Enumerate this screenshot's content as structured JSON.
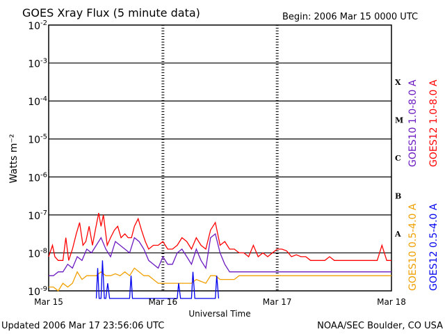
{
  "page": {
    "title": "GOES Xray Flux (5 minute data)",
    "begin": "Begin:  2006 Mar 15 0000 UTC",
    "updated": "Updated 2006 Mar 17 23:56:06 UTC",
    "credit": "NOAA/SEC Boulder, CO USA"
  },
  "chart_data": {
    "type": "line",
    "title": "GOES Xray Flux (5 minute data)",
    "xlabel": "Universal Time",
    "ylabel": "Watts m⁻²",
    "yscale": "log",
    "ylim": [
      1e-09,
      0.01
    ],
    "xlim": [
      0,
      72
    ],
    "x_unit": "hours since 2006 Mar 15 0000 UTC",
    "grid": "horizontal decade lines; dotted day separators",
    "x_ticks": [
      {
        "x": 0,
        "label": "Mar 15"
      },
      {
        "x": 24,
        "label": "Mar 16"
      },
      {
        "x": 48,
        "label": "Mar 17"
      },
      {
        "x": 72,
        "label": "Mar 18"
      }
    ],
    "y_ticks": [
      {
        "exp": -2,
        "base": "10",
        "sup": "-2"
      },
      {
        "exp": -3,
        "base": "10",
        "sup": "-3"
      },
      {
        "exp": -4,
        "base": "10",
        "sup": "-4"
      },
      {
        "exp": -5,
        "base": "10",
        "sup": "-5"
      },
      {
        "exp": -6,
        "base": "10",
        "sup": "-6"
      },
      {
        "exp": -7,
        "base": "10",
        "sup": "-7"
      },
      {
        "exp": -8,
        "base": "10",
        "sup": "-8"
      },
      {
        "exp": -9,
        "base": "10",
        "sup": "-9"
      }
    ],
    "flare_classes": [
      {
        "label": "X",
        "exp": -3.5
      },
      {
        "label": "M",
        "exp": -4.5
      },
      {
        "label": "C",
        "exp": -5.5
      },
      {
        "label": "B",
        "exp": -6.5
      },
      {
        "label": "A",
        "exp": -7.5
      }
    ],
    "series": [
      {
        "name": "GOES12 1.0-8.0 A",
        "color": "#ff0000",
        "points": [
          [
            0,
            -8.1
          ],
          [
            0.8,
            -7.8
          ],
          [
            1.3,
            -8.1
          ],
          [
            2,
            -8.2
          ],
          [
            3,
            -8.2
          ],
          [
            3.6,
            -7.6
          ],
          [
            4.2,
            -8.2
          ],
          [
            5,
            -7.9
          ],
          [
            5.8,
            -7.5
          ],
          [
            6.5,
            -7.2
          ],
          [
            7.2,
            -7.8
          ],
          [
            7.8,
            -7.7
          ],
          [
            8.5,
            -7.3
          ],
          [
            9.2,
            -7.8
          ],
          [
            9.8,
            -7.4
          ],
          [
            10.5,
            -6.95
          ],
          [
            11,
            -7.3
          ],
          [
            11.5,
            -7.0
          ],
          [
            12.3,
            -7.8
          ],
          [
            13,
            -7.6
          ],
          [
            13.8,
            -7.4
          ],
          [
            14.5,
            -7.3
          ],
          [
            15.2,
            -7.6
          ],
          [
            16,
            -7.5
          ],
          [
            16.7,
            -7.6
          ],
          [
            17.4,
            -7.6
          ],
          [
            18,
            -7.3
          ],
          [
            18.8,
            -7.1
          ],
          [
            19.5,
            -7.4
          ],
          [
            20.3,
            -7.7
          ],
          [
            21,
            -7.9
          ],
          [
            22,
            -7.8
          ],
          [
            23,
            -7.8
          ],
          [
            24,
            -7.7
          ],
          [
            25,
            -7.9
          ],
          [
            26,
            -7.9
          ],
          [
            27,
            -7.8
          ],
          [
            28,
            -7.6
          ],
          [
            29,
            -7.7
          ],
          [
            30,
            -7.9
          ],
          [
            31,
            -7.6
          ],
          [
            32,
            -7.8
          ],
          [
            33,
            -7.9
          ],
          [
            34,
            -7.4
          ],
          [
            35,
            -7.2
          ],
          [
            35.5,
            -7.5
          ],
          [
            36,
            -7.8
          ],
          [
            37,
            -7.7
          ],
          [
            38,
            -7.9
          ],
          [
            39,
            -7.9
          ],
          [
            40,
            -8.0
          ],
          [
            41,
            -8.0
          ],
          [
            42,
            -8.1
          ],
          [
            43,
            -7.8
          ],
          [
            44,
            -8.1
          ],
          [
            45,
            -8.0
          ],
          [
            46,
            -8.1
          ],
          [
            47,
            -8.0
          ],
          [
            48,
            -7.9
          ],
          [
            49,
            -7.9
          ],
          [
            50,
            -7.95
          ],
          [
            51,
            -8.1
          ],
          [
            52,
            -8.05
          ],
          [
            53,
            -8.1
          ],
          [
            54,
            -8.1
          ],
          [
            55,
            -8.2
          ],
          [
            56,
            -8.2
          ],
          [
            57,
            -8.2
          ],
          [
            58,
            -8.2
          ],
          [
            59,
            -8.1
          ],
          [
            60,
            -8.2
          ],
          [
            61,
            -8.2
          ],
          [
            62,
            -8.2
          ],
          [
            63,
            -8.2
          ],
          [
            64,
            -8.2
          ],
          [
            65,
            -8.2
          ],
          [
            66,
            -8.2
          ],
          [
            67,
            -8.2
          ],
          [
            68,
            -8.2
          ],
          [
            69,
            -8.2
          ],
          [
            70,
            -7.8
          ],
          [
            71,
            -8.2
          ],
          [
            72,
            -8.2
          ]
        ]
      },
      {
        "name": "GOES10 1.0-8.0 A",
        "color": "#6a1ac0",
        "points": [
          [
            0,
            -8.6
          ],
          [
            1,
            -8.6
          ],
          [
            2,
            -8.5
          ],
          [
            3,
            -8.5
          ],
          [
            4,
            -8.3
          ],
          [
            5,
            -8.4
          ],
          [
            6,
            -8.1
          ],
          [
            7,
            -8.2
          ],
          [
            8,
            -7.9
          ],
          [
            9,
            -8.0
          ],
          [
            10,
            -7.8
          ],
          [
            11,
            -7.6
          ],
          [
            12,
            -7.9
          ],
          [
            13,
            -8.1
          ],
          [
            14,
            -7.7
          ],
          [
            15,
            -7.8
          ],
          [
            16,
            -7.9
          ],
          [
            17,
            -8.0
          ],
          [
            18,
            -7.6
          ],
          [
            19,
            -7.7
          ],
          [
            20,
            -7.9
          ],
          [
            21,
            -8.2
          ],
          [
            22,
            -8.3
          ],
          [
            23,
            -8.4
          ],
          [
            24,
            -8.1
          ],
          [
            25,
            -8.3
          ],
          [
            26,
            -8.3
          ],
          [
            27,
            -8.0
          ],
          [
            28,
            -7.9
          ],
          [
            29,
            -8.1
          ],
          [
            30,
            -8.3
          ],
          [
            31,
            -7.9
          ],
          [
            32,
            -8.2
          ],
          [
            33,
            -8.4
          ],
          [
            34,
            -7.6
          ],
          [
            35,
            -7.5
          ],
          [
            36,
            -8.0
          ],
          [
            37,
            -8.3
          ],
          [
            38,
            -8.5
          ],
          [
            39,
            -8.5
          ],
          [
            40,
            -8.5
          ],
          [
            41,
            -8.5
          ],
          [
            42,
            -8.5
          ],
          [
            43,
            -8.5
          ],
          [
            44,
            -8.5
          ],
          [
            45,
            -8.5
          ],
          [
            46,
            -8.5
          ],
          [
            47,
            -8.5
          ],
          [
            48,
            -8.5
          ],
          [
            50,
            -8.5
          ],
          [
            52,
            -8.5
          ],
          [
            54,
            -8.5
          ],
          [
            56,
            -8.5
          ],
          [
            58,
            -8.5
          ],
          [
            60,
            -8.5
          ],
          [
            62,
            -8.5
          ],
          [
            64,
            -8.5
          ],
          [
            66,
            -8.5
          ],
          [
            68,
            -8.5
          ],
          [
            70,
            -8.5
          ],
          [
            72,
            -8.5
          ]
        ]
      },
      {
        "name": "GOES10 0.5-4.0 A",
        "color": "#f0a000",
        "points": [
          [
            0,
            -8.9
          ],
          [
            1,
            -8.9
          ],
          [
            2,
            -9.0
          ],
          [
            3,
            -8.8
          ],
          [
            4,
            -8.9
          ],
          [
            5,
            -8.8
          ],
          [
            6,
            -8.5
          ],
          [
            7,
            -8.7
          ],
          [
            8,
            -8.6
          ],
          [
            9,
            -8.6
          ],
          [
            10,
            -8.6
          ],
          [
            11,
            -8.5
          ],
          [
            12,
            -8.6
          ],
          [
            13,
            -8.6
          ],
          [
            14,
            -8.55
          ],
          [
            15,
            -8.6
          ],
          [
            16,
            -8.5
          ],
          [
            17,
            -8.6
          ],
          [
            18,
            -8.4
          ],
          [
            19,
            -8.5
          ],
          [
            20,
            -8.6
          ],
          [
            21,
            -8.6
          ],
          [
            22,
            -8.7
          ],
          [
            23,
            -8.8
          ],
          [
            24,
            -8.8
          ],
          [
            25,
            -8.8
          ],
          [
            26,
            -8.8
          ],
          [
            27,
            -8.8
          ],
          [
            28,
            -8.8
          ],
          [
            29,
            -8.8
          ],
          [
            30,
            -8.8
          ],
          [
            31,
            -8.7
          ],
          [
            32,
            -8.75
          ],
          [
            33,
            -8.8
          ],
          [
            34,
            -8.6
          ],
          [
            35,
            -8.6
          ],
          [
            36,
            -8.7
          ],
          [
            37,
            -8.7
          ],
          [
            38,
            -8.7
          ],
          [
            39,
            -8.7
          ],
          [
            40,
            -8.6
          ],
          [
            41,
            -8.6
          ],
          [
            42,
            -8.6
          ],
          [
            43,
            -8.6
          ],
          [
            44,
            -8.6
          ],
          [
            45,
            -8.6
          ],
          [
            46,
            -8.6
          ],
          [
            47,
            -8.6
          ],
          [
            48,
            -8.6
          ],
          [
            50,
            -8.6
          ],
          [
            52,
            -8.6
          ],
          [
            54,
            -8.6
          ],
          [
            56,
            -8.6
          ],
          [
            58,
            -8.6
          ],
          [
            60,
            -8.6
          ],
          [
            62,
            -8.6
          ],
          [
            64,
            -8.6
          ],
          [
            66,
            -8.6
          ],
          [
            68,
            -8.6
          ],
          [
            70,
            -8.6
          ],
          [
            72,
            -8.6
          ]
        ]
      },
      {
        "name": "GOES12 0.5-4.0 A",
        "color": "#0000ee",
        "points": [
          [
            10,
            -9.2
          ],
          [
            10.3,
            -8.4
          ],
          [
            10.6,
            -9.2
          ],
          [
            11,
            -9.2
          ],
          [
            11.3,
            -8.2
          ],
          [
            11.7,
            -9.2
          ],
          [
            12,
            -9.2
          ],
          [
            12.4,
            -8.8
          ],
          [
            12.8,
            -9.2
          ],
          [
            17,
            -9.2
          ],
          [
            17.3,
            -8.6
          ],
          [
            17.6,
            -9.2
          ],
          [
            27,
            -9.2
          ],
          [
            27.3,
            -8.8
          ],
          [
            27.7,
            -9.2
          ],
          [
            30,
            -9.2
          ],
          [
            30.3,
            -8.5
          ],
          [
            30.7,
            -9.2
          ],
          [
            35,
            -9.2
          ],
          [
            35.3,
            -8.6
          ],
          [
            35.7,
            -9.2
          ]
        ]
      }
    ]
  }
}
